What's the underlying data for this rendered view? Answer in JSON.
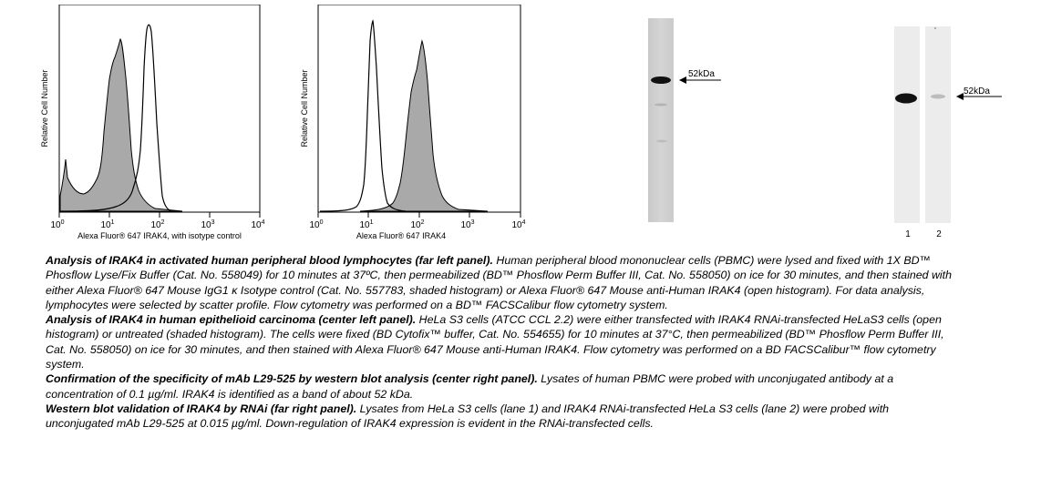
{
  "panels": {
    "hist1": {
      "ylabel": "Relative Cell Number",
      "xlabel": "Alexa Fluor® 647 IRAK4, with isotype control",
      "ticks": [
        {
          "base": "10",
          "exp": "0"
        },
        {
          "base": "10",
          "exp": "1"
        },
        {
          "base": "10",
          "exp": "2"
        },
        {
          "base": "10",
          "exp": "3"
        },
        {
          "base": "10",
          "exp": "4"
        }
      ]
    },
    "hist2": {
      "ylabel": "Relative Cell Number",
      "xlabel": "Alexa Fluor® 647 IRAK4",
      "ticks": [
        {
          "base": "10",
          "exp": "0"
        },
        {
          "base": "10",
          "exp": "1"
        },
        {
          "base": "10",
          "exp": "2"
        },
        {
          "base": "10",
          "exp": "3"
        },
        {
          "base": "10",
          "exp": "4"
        }
      ]
    },
    "blot1": {
      "marker": "52kDa"
    },
    "blot2": {
      "marker": "52kDa",
      "lanes": [
        "1",
        "2"
      ]
    }
  },
  "caption": [
    {
      "title": "Analysis of IRAK4 in activated human peripheral blood lymphocytes (far left panel).",
      "text": " Human peripheral blood mononuclear cells (PBMC) were lysed and fixed with 1X BD™ Phosflow Lyse/Fix Buffer (Cat. No. 558049) for 10 minutes at 37ºC, then permeabilized (BD™ Phosflow Perm Buffer III, Cat. No. 558050) on ice for 30 minutes, and then stained with either Alexa Fluor® 647 Mouse IgG1 κ Isotype control (Cat. No. 557783, shaded histogram) or Alexa Fluor® 647 Mouse anti-Human IRAK4 (open histogram).  For data analysis, lymphocytes were selected by scatter profile.  Flow cytometry was performed on a BD™ FACSCalibur flow cytometry system."
    },
    {
      "title": "Analysis of IRAK4 in human epithelioid carcinoma (center left panel).",
      "text": " HeLa S3 cells (ATCC CCL 2.2) were either transfected with IRAK4 RNAi-transfected HeLaS3 cells (open histogram) or untreated (shaded histogram).  The cells were fixed (BD Cytofix™ buffer, Cat. No. 554655) for 10 minutes at 37°C, then permeabilized (BD™ Phosflow Perm Buffer III, Cat. No. 558050) on ice for 30 minutes, and then stained with Alexa Fluor® 647 Mouse anti-Human IRAK4. Flow cytometry was performed on a BD FACSCalibur™ flow cytometry system."
    },
    {
      "title": "Confirmation of the specificity of mAb L29-525 by western blot analysis (center right panel).",
      "text": " Lysates of human PBMC were probed with unconjugated antibody at a concentration of 0.1 µg/ml.  IRAK4 is identified as a band of about 52 kDa."
    },
    {
      "title": "Western blot validation of IRAK4 by RNAi (far right panel).",
      "text": "  Lysates from HeLa S3 cells (lane 1) and IRAK4 RNAi-transfected HeLa S3 cells (lane 2) were probed with unconjugated mAb L29-525 at 0.015 µg/ml.  Down-regulation of IRAK4 expression is evident in the RNAi-transfected cells."
    }
  ]
}
